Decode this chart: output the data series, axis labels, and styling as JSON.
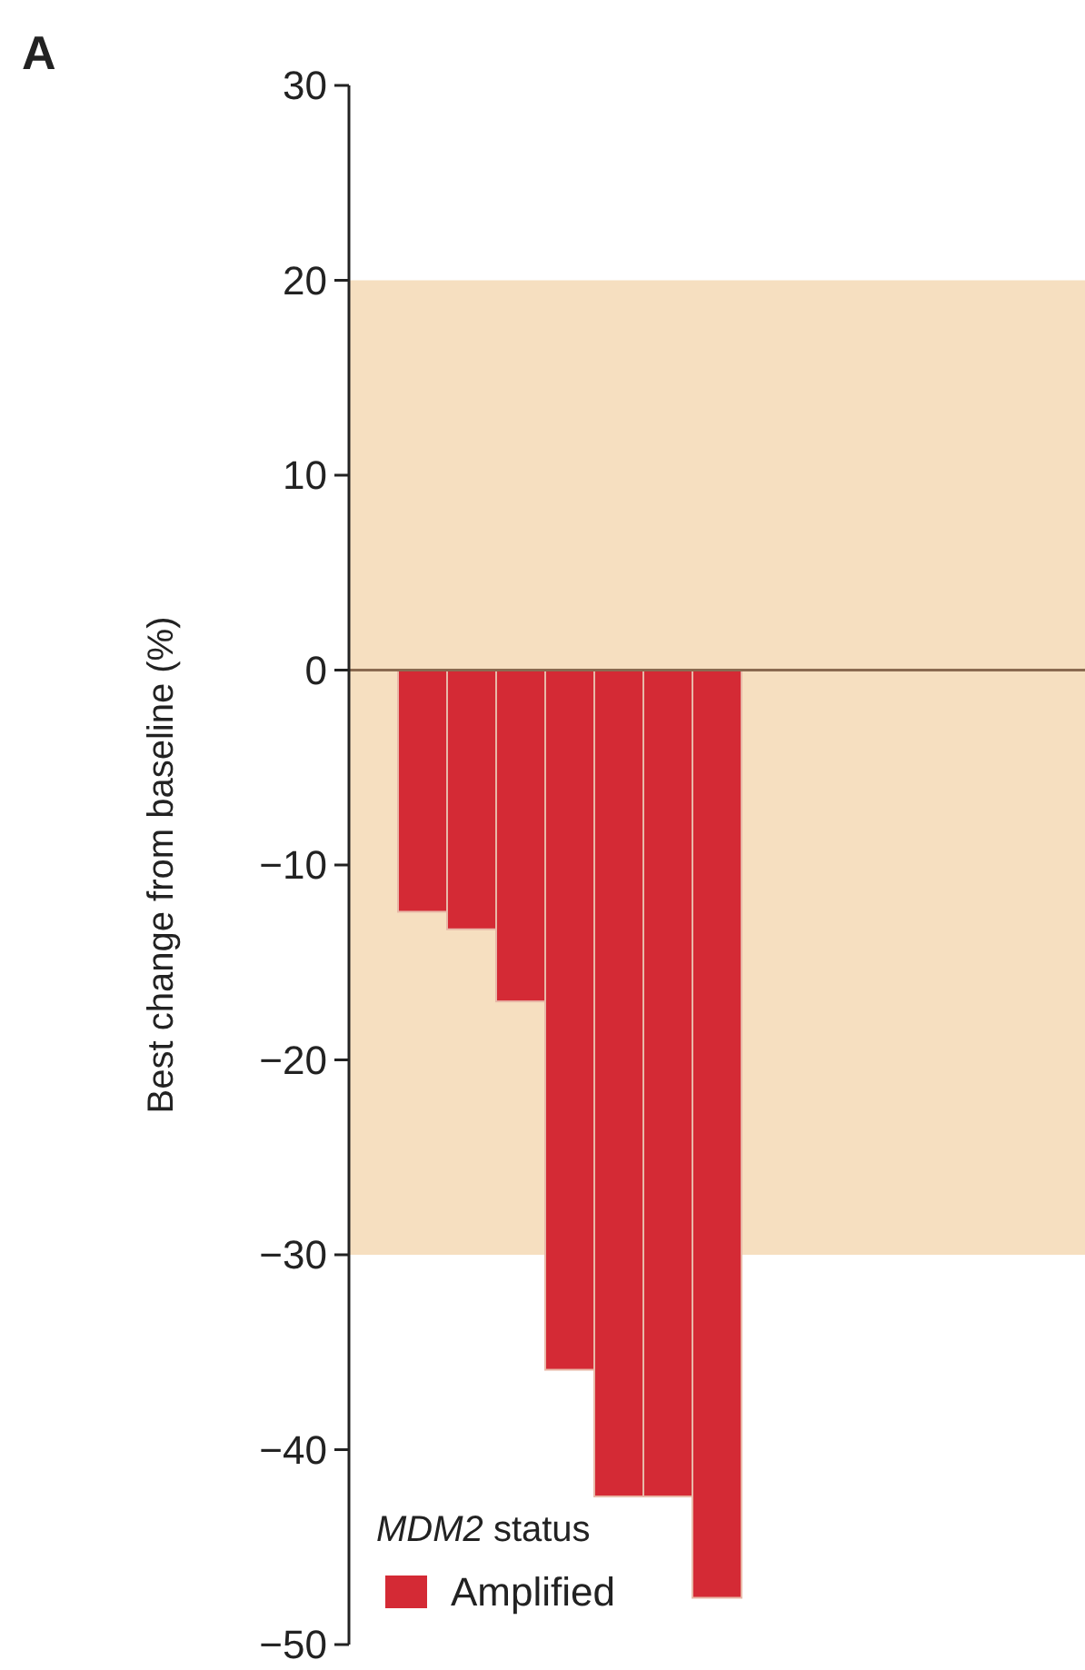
{
  "chart_data": {
    "type": "bar",
    "title": "A",
    "ylabel": "Best change from baseline (%)",
    "legend_title": "MDM2 status",
    "categories": [
      null,
      null,
      null,
      null,
      null,
      null,
      null,
      null,
      null,
      null,
      null,
      null,
      null,
      null,
      null
    ],
    "series": [
      {
        "name": "Amplified",
        "color": "#d42a35",
        "values": [
          null,
          -12.4,
          -13.3,
          -17.0,
          -35.9,
          -42.4,
          -42.4,
          -47.6,
          null,
          null,
          null,
          null,
          null,
          null,
          null
        ]
      }
    ],
    "ylim": [
      -50,
      30
    ],
    "yticks": [
      -50,
      -40,
      -30,
      -20,
      -10,
      0,
      10,
      20,
      30
    ],
    "bands": [
      {
        "axis": "y",
        "from": -30,
        "to": 20,
        "color": "#f6dfc0"
      }
    ],
    "ref_lines": [
      {
        "axis": "y",
        "value": 0,
        "color": "#8a6a50"
      }
    ],
    "legend": "bottom left",
    "grid": false
  }
}
